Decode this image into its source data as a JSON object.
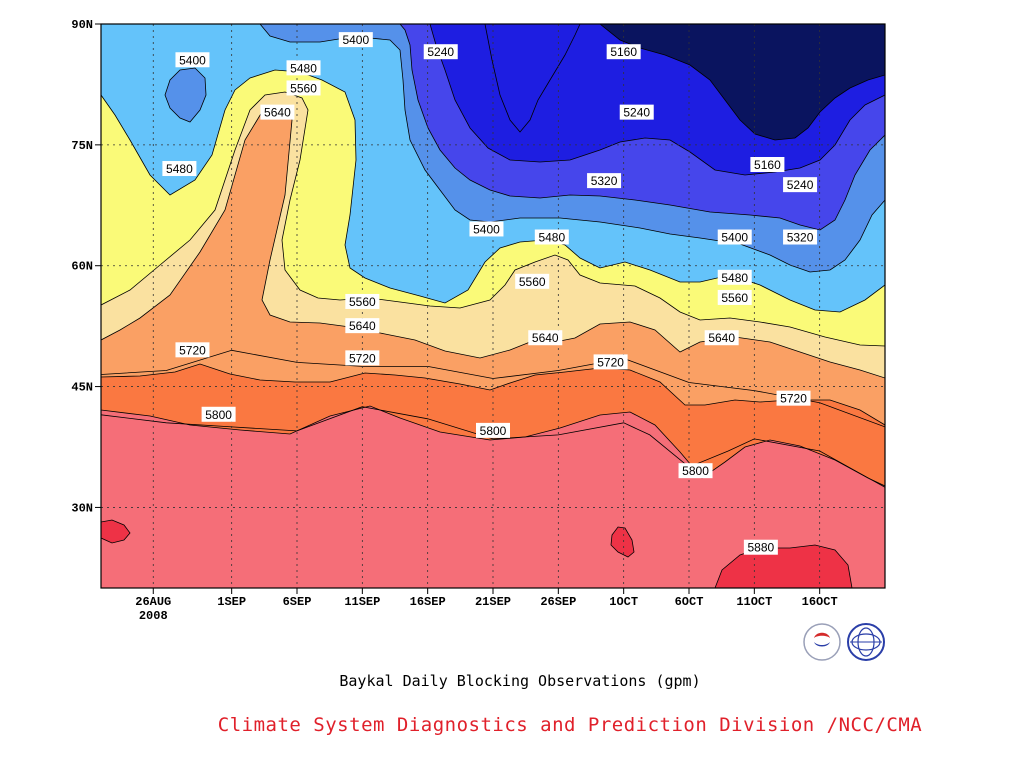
{
  "chart_data": {
    "type": "heatmap",
    "title": "Baykal Daily Blocking Observations (gpm)",
    "credit": "Climate System Diagnostics and Prediction Division /NCC/CMA",
    "x_axis": {
      "ticks": [
        {
          "label": "26AUG",
          "sub": "2008",
          "day": 4
        },
        {
          "label": "1SEP",
          "day": 10
        },
        {
          "label": "6SEP",
          "day": 15
        },
        {
          "label": "11SEP",
          "day": 20
        },
        {
          "label": "16SEP",
          "day": 25
        },
        {
          "label": "21SEP",
          "day": 30
        },
        {
          "label": "26SEP",
          "day": 35
        },
        {
          "label": "1OCT",
          "day": 40
        },
        {
          "label": "6OCT",
          "day": 45
        },
        {
          "label": "11OCT",
          "day": 50
        },
        {
          "label": "16OCT",
          "day": 55
        }
      ],
      "range": [
        0,
        60
      ]
    },
    "y_axis": {
      "ticks": [
        {
          "label": "30N",
          "value": 30
        },
        {
          "label": "45N",
          "value": 45
        },
        {
          "label": "60N",
          "value": 60
        },
        {
          "label": "75N",
          "value": 75
        },
        {
          "label": "90N",
          "value": 90
        }
      ],
      "range": [
        20,
        90
      ]
    },
    "grid": true,
    "levels": [
      5160,
      5240,
      5320,
      5400,
      5480,
      5560,
      5640,
      5720,
      5800,
      5880
    ],
    "colors": {
      "below_5160": "#0a145f",
      "5160_5240": "#1e1ee1",
      "5240_5320": "#4646eb",
      "5320_5400": "#5591ea",
      "5400_5480": "#64c3fa",
      "5480_5560": "#fafa78",
      "5560_5640": "#fae1a0",
      "5640_5720": "#faa064",
      "5720_5800": "#fa7841",
      "5800_5880": "#f56e78",
      "above_5880": "#ee3246"
    },
    "contour_lines": [
      {
        "level": 5720,
        "points": [
          [
            0,
            46.5
          ],
          [
            5,
            47
          ],
          [
            10,
            49.5
          ],
          [
            15,
            48
          ],
          [
            20,
            47.5
          ],
          [
            25,
            47.5
          ],
          [
            30,
            46
          ],
          [
            35,
            47
          ],
          [
            40,
            48.5
          ],
          [
            45,
            45.5
          ],
          [
            50,
            44.5
          ],
          [
            55,
            43
          ],
          [
            60,
            40
          ]
        ]
      },
      {
        "level": 5800,
        "points": [
          [
            0,
            41.5
          ],
          [
            5,
            40.5
          ],
          [
            10,
            40
          ],
          [
            15,
            39.5
          ],
          [
            20,
            42.5
          ],
          [
            25,
            41
          ],
          [
            30,
            38.5
          ],
          [
            35,
            39
          ],
          [
            40,
            40.5
          ],
          [
            42,
            39
          ],
          [
            45,
            35
          ],
          [
            48,
            37
          ],
          [
            50,
            38.5
          ],
          [
            55,
            37
          ],
          [
            60,
            32.5
          ]
        ]
      }
    ],
    "contour_labels": [
      {
        "text": "5160",
        "day": 40,
        "lat": 86.5
      },
      {
        "text": "5160",
        "day": 51,
        "lat": 72.5
      },
      {
        "text": "5240",
        "day": 26,
        "lat": 86.5
      },
      {
        "text": "5240",
        "day": 41,
        "lat": 79
      },
      {
        "text": "5240",
        "day": 53.5,
        "lat": 70
      },
      {
        "text": "5320",
        "day": 38.5,
        "lat": 70.5
      },
      {
        "text": "5320",
        "day": 53.5,
        "lat": 63.5
      },
      {
        "text": "5400",
        "day": 7,
        "lat": 85.5
      },
      {
        "text": "5400",
        "day": 19.5,
        "lat": 88
      },
      {
        "text": "5400",
        "day": 29.5,
        "lat": 64.5
      },
      {
        "text": "5400",
        "day": 48.5,
        "lat": 63.5
      },
      {
        "text": "5480",
        "day": 6,
        "lat": 72
      },
      {
        "text": "5480",
        "day": 15.5,
        "lat": 84.5
      },
      {
        "text": "5480",
        "day": 34.5,
        "lat": 63.5
      },
      {
        "text": "5480",
        "day": 48.5,
        "lat": 58.5
      },
      {
        "text": "5560",
        "day": 15.5,
        "lat": 82
      },
      {
        "text": "5560",
        "day": 20,
        "lat": 55.5
      },
      {
        "text": "5560",
        "day": 33,
        "lat": 58
      },
      {
        "text": "5560",
        "day": 48.5,
        "lat": 56
      },
      {
        "text": "5640",
        "day": 13.5,
        "lat": 79
      },
      {
        "text": "5640",
        "day": 20,
        "lat": 52.5
      },
      {
        "text": "5640",
        "day": 34,
        "lat": 51
      },
      {
        "text": "5640",
        "day": 47.5,
        "lat": 51
      },
      {
        "text": "5720",
        "day": 7,
        "lat": 49.5
      },
      {
        "text": "5720",
        "day": 20,
        "lat": 48.5
      },
      {
        "text": "5720",
        "day": 39,
        "lat": 48
      },
      {
        "text": "5720",
        "day": 53,
        "lat": 43.5
      },
      {
        "text": "5800",
        "day": 9,
        "lat": 41.5
      },
      {
        "text": "5800",
        "day": 30,
        "lat": 39.5
      },
      {
        "text": "5800",
        "day": 45.5,
        "lat": 34.5
      },
      {
        "text": "5880",
        "day": 50.5,
        "lat": 25
      }
    ]
  }
}
